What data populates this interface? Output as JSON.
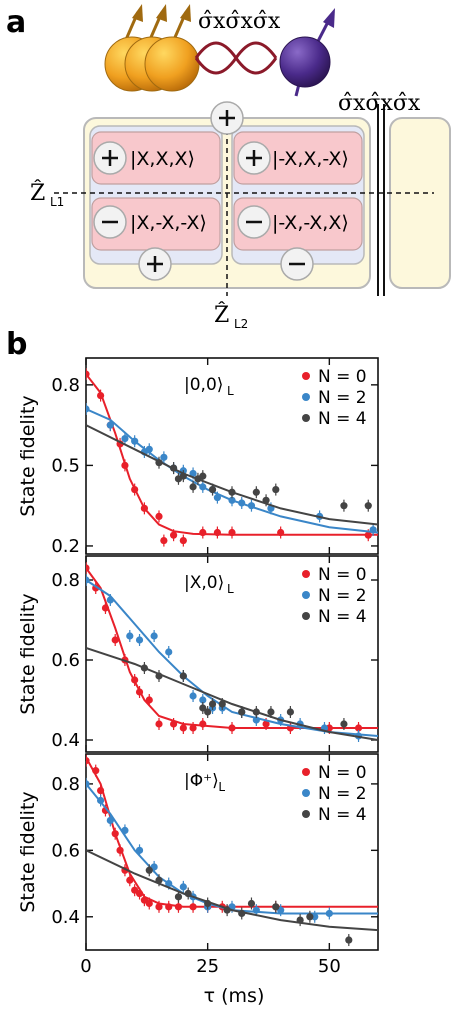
{
  "panel_a": {
    "letter": "a",
    "operator_top": "σ̂xσ̂xσ̂x",
    "operator_right": "σ̂xσ̂xσ̂x",
    "z_l1": "Ẑ",
    "z_l1_sub": "L1",
    "z_l2": "Ẑ",
    "z_l2_sub": "L2",
    "states": [
      "|X,X,X⟩",
      "|-X,X,-X⟩",
      "|X,-X,-X⟩",
      "|-X,-X,X⟩"
    ],
    "colors": {
      "cell": "#f8c8cc",
      "inner": "#e4e8f6",
      "outer": "#fdf8dc",
      "spin_orange": "#f0a020",
      "spin_purple": "#4a2a8a",
      "wave": "#8b1a2a"
    }
  },
  "panel_b": {
    "letter": "b",
    "ylabel": "State fidelity",
    "xlabel": "τ (ms)"
  },
  "chart_data": [
    {
      "type": "scatter",
      "title": "|0,0⟩L",
      "state_label": "|0,0⟩",
      "state_sub": "L",
      "ylabel": "State fidelity",
      "xlim": [
        0,
        60
      ],
      "ylim": [
        0.17,
        0.9
      ],
      "yticks": [
        0.2,
        0.5,
        0.8
      ],
      "xticks": [
        0,
        25,
        50
      ],
      "legend_position": "top-right",
      "series": [
        {
          "name": "N = 0",
          "color": "#e8202a",
          "points": [
            [
              0,
              0.84
            ],
            [
              3,
              0.76
            ],
            [
              5,
              0.65
            ],
            [
              7,
              0.58
            ],
            [
              8,
              0.5
            ],
            [
              10,
              0.41
            ],
            [
              12,
              0.34
            ],
            [
              15,
              0.31
            ],
            [
              16,
              0.22
            ],
            [
              18,
              0.24
            ],
            [
              20,
              0.22
            ],
            [
              24,
              0.25
            ],
            [
              27,
              0.25
            ],
            [
              30,
              0.25
            ],
            [
              40,
              0.25
            ],
            [
              58,
              0.24
            ]
          ],
          "curve": [
            [
              0,
              0.84
            ],
            [
              3,
              0.77
            ],
            [
              6,
              0.62
            ],
            [
              9,
              0.45
            ],
            [
              12,
              0.34
            ],
            [
              15,
              0.28
            ],
            [
              18,
              0.255
            ],
            [
              22,
              0.245
            ],
            [
              30,
              0.242
            ],
            [
              60,
              0.242
            ]
          ]
        },
        {
          "name": "N = 2",
          "color": "#3a86c8",
          "points": [
            [
              0,
              0.71
            ],
            [
              5,
              0.65
            ],
            [
              8,
              0.6
            ],
            [
              10,
              0.59
            ],
            [
              12,
              0.55
            ],
            [
              13,
              0.56
            ],
            [
              16,
              0.53
            ],
            [
              18,
              0.49
            ],
            [
              20,
              0.48
            ],
            [
              22,
              0.47
            ],
            [
              24,
              0.42
            ],
            [
              26,
              0.41
            ],
            [
              27,
              0.38
            ],
            [
              30,
              0.37
            ],
            [
              32,
              0.36
            ],
            [
              34,
              0.35
            ],
            [
              38,
              0.34
            ],
            [
              48,
              0.31
            ],
            [
              59,
              0.26
            ]
          ],
          "curve": [
            [
              0,
              0.71
            ],
            [
              5,
              0.67
            ],
            [
              10,
              0.59
            ],
            [
              15,
              0.52
            ],
            [
              20,
              0.46
            ],
            [
              25,
              0.41
            ],
            [
              30,
              0.37
            ],
            [
              40,
              0.31
            ],
            [
              50,
              0.27
            ],
            [
              60,
              0.25
            ]
          ]
        },
        {
          "name": "N = 4",
          "color": "#444444",
          "points": [
            [
              15,
              0.51
            ],
            [
              18,
              0.49
            ],
            [
              19,
              0.45
            ],
            [
              20,
              0.46
            ],
            [
              22,
              0.42
            ],
            [
              23,
              0.45
            ],
            [
              24,
              0.46
            ],
            [
              26,
              0.41
            ],
            [
              30,
              0.4
            ],
            [
              35,
              0.4
            ],
            [
              37,
              0.37
            ],
            [
              39,
              0.41
            ],
            [
              53,
              0.35
            ],
            [
              58,
              0.35
            ]
          ],
          "curve": [
            [
              0,
              0.65
            ],
            [
              10,
              0.56
            ],
            [
              20,
              0.47
            ],
            [
              30,
              0.4
            ],
            [
              40,
              0.34
            ],
            [
              50,
              0.3
            ],
            [
              60,
              0.28
            ]
          ]
        }
      ]
    },
    {
      "type": "scatter",
      "title": "|X,0⟩L",
      "state_label": "|X,0⟩",
      "state_sub": "L",
      "ylabel": "State fidelity",
      "xlim": [
        0,
        60
      ],
      "ylim": [
        0.37,
        0.86
      ],
      "yticks": [
        0.4,
        0.6,
        0.8
      ],
      "xticks": [
        0,
        25,
        50
      ],
      "legend_position": "top-right",
      "series": [
        {
          "name": "N = 0",
          "color": "#e8202a",
          "points": [
            [
              0,
              0.83
            ],
            [
              2,
              0.78
            ],
            [
              4,
              0.73
            ],
            [
              6,
              0.65
            ],
            [
              8,
              0.6
            ],
            [
              10,
              0.55
            ],
            [
              11,
              0.52
            ],
            [
              13,
              0.5
            ],
            [
              15,
              0.44
            ],
            [
              18,
              0.44
            ],
            [
              20,
              0.43
            ],
            [
              22,
              0.43
            ],
            [
              24,
              0.44
            ],
            [
              30,
              0.43
            ],
            [
              37,
              0.44
            ],
            [
              42,
              0.43
            ],
            [
              50,
              0.43
            ],
            [
              56,
              0.43
            ]
          ],
          "curve": [
            [
              0,
              0.83
            ],
            [
              3,
              0.78
            ],
            [
              6,
              0.68
            ],
            [
              9,
              0.57
            ],
            [
              12,
              0.5
            ],
            [
              15,
              0.46
            ],
            [
              20,
              0.44
            ],
            [
              30,
              0.43
            ],
            [
              60,
              0.43
            ]
          ]
        },
        {
          "name": "N = 2",
          "color": "#3a86c8",
          "points": [
            [
              0,
              0.8
            ],
            [
              5,
              0.75
            ],
            [
              9,
              0.66
            ],
            [
              11,
              0.65
            ],
            [
              14,
              0.66
            ],
            [
              17,
              0.62
            ],
            [
              20,
              0.56
            ],
            [
              22,
              0.51
            ],
            [
              24,
              0.5
            ],
            [
              26,
              0.48
            ],
            [
              28,
              0.48
            ],
            [
              32,
              0.47
            ],
            [
              35,
              0.45
            ],
            [
              40,
              0.45
            ],
            [
              44,
              0.44
            ],
            [
              49,
              0.43
            ],
            [
              56,
              0.41
            ]
          ],
          "curve": [
            [
              0,
              0.8
            ],
            [
              5,
              0.76
            ],
            [
              10,
              0.69
            ],
            [
              15,
              0.62
            ],
            [
              20,
              0.56
            ],
            [
              25,
              0.51
            ],
            [
              30,
              0.47
            ],
            [
              40,
              0.44
            ],
            [
              50,
              0.42
            ],
            [
              60,
              0.41
            ]
          ]
        },
        {
          "name": "N = 4",
          "color": "#444444",
          "points": [
            [
              12,
              0.58
            ],
            [
              15,
              0.56
            ],
            [
              20,
              0.56
            ],
            [
              24,
              0.48
            ],
            [
              25,
              0.47
            ],
            [
              26,
              0.49
            ],
            [
              28,
              0.49
            ],
            [
              32,
              0.47
            ],
            [
              35,
              0.47
            ],
            [
              38,
              0.47
            ],
            [
              42,
              0.47
            ],
            [
              53,
              0.44
            ]
          ],
          "curve": [
            [
              0,
              0.63
            ],
            [
              10,
              0.59
            ],
            [
              20,
              0.54
            ],
            [
              30,
              0.49
            ],
            [
              40,
              0.45
            ],
            [
              50,
              0.42
            ],
            [
              60,
              0.4
            ]
          ]
        }
      ]
    },
    {
      "type": "scatter",
      "title": "|Φ+⟩L",
      "state_label": "|Φ⁺⟩",
      "state_sub": "L",
      "ylabel": "State fidelity",
      "xlabel": "τ (ms)",
      "xlim": [
        0,
        60
      ],
      "ylim": [
        0.3,
        0.89
      ],
      "yticks": [
        0.4,
        0.6,
        0.8
      ],
      "xticks": [
        0,
        25,
        50
      ],
      "legend_position": "top-right",
      "series": [
        {
          "name": "N = 0",
          "color": "#e8202a",
          "points": [
            [
              0,
              0.87
            ],
            [
              2,
              0.84
            ],
            [
              3,
              0.78
            ],
            [
              4,
              0.72
            ],
            [
              6,
              0.65
            ],
            [
              7,
              0.6
            ],
            [
              8,
              0.54
            ],
            [
              9,
              0.51
            ],
            [
              10,
              0.48
            ],
            [
              11,
              0.47
            ],
            [
              12,
              0.45
            ],
            [
              13,
              0.44
            ],
            [
              15,
              0.43
            ],
            [
              17,
              0.43
            ],
            [
              19,
              0.43
            ],
            [
              22,
              0.43
            ],
            [
              25,
              0.43
            ],
            [
              28,
              0.43
            ],
            [
              39,
              0.43
            ]
          ],
          "curve": [
            [
              0,
              0.88
            ],
            [
              3,
              0.8
            ],
            [
              6,
              0.65
            ],
            [
              9,
              0.53
            ],
            [
              12,
              0.46
            ],
            [
              15,
              0.44
            ],
            [
              20,
              0.43
            ],
            [
              30,
              0.43
            ],
            [
              60,
              0.43
            ]
          ]
        },
        {
          "name": "N = 2",
          "color": "#3a86c8",
          "points": [
            [
              0,
              0.8
            ],
            [
              3,
              0.75
            ],
            [
              5,
              0.69
            ],
            [
              8,
              0.66
            ],
            [
              11,
              0.6
            ],
            [
              14,
              0.55
            ],
            [
              17,
              0.5
            ],
            [
              20,
              0.49
            ],
            [
              22,
              0.46
            ],
            [
              25,
              0.43
            ],
            [
              30,
              0.43
            ],
            [
              35,
              0.42
            ],
            [
              40,
              0.42
            ],
            [
              47,
              0.4
            ],
            [
              50,
              0.41
            ]
          ],
          "curve": [
            [
              0,
              0.8
            ],
            [
              5,
              0.71
            ],
            [
              10,
              0.6
            ],
            [
              15,
              0.52
            ],
            [
              20,
              0.47
            ],
            [
              25,
              0.44
            ],
            [
              30,
              0.42
            ],
            [
              40,
              0.41
            ],
            [
              60,
              0.41
            ]
          ]
        },
        {
          "name": "N = 4",
          "color": "#444444",
          "points": [
            [
              13,
              0.54
            ],
            [
              15,
              0.51
            ],
            [
              19,
              0.46
            ],
            [
              21,
              0.47
            ],
            [
              25,
              0.44
            ],
            [
              29,
              0.42
            ],
            [
              32,
              0.41
            ],
            [
              34,
              0.44
            ],
            [
              39,
              0.43
            ],
            [
              44,
              0.39
            ],
            [
              46,
              0.4
            ],
            [
              54,
              0.33
            ]
          ],
          "curve": [
            [
              0,
              0.6
            ],
            [
              10,
              0.53
            ],
            [
              20,
              0.47
            ],
            [
              30,
              0.42
            ],
            [
              40,
              0.39
            ],
            [
              50,
              0.37
            ],
            [
              60,
              0.36
            ]
          ]
        }
      ]
    }
  ]
}
